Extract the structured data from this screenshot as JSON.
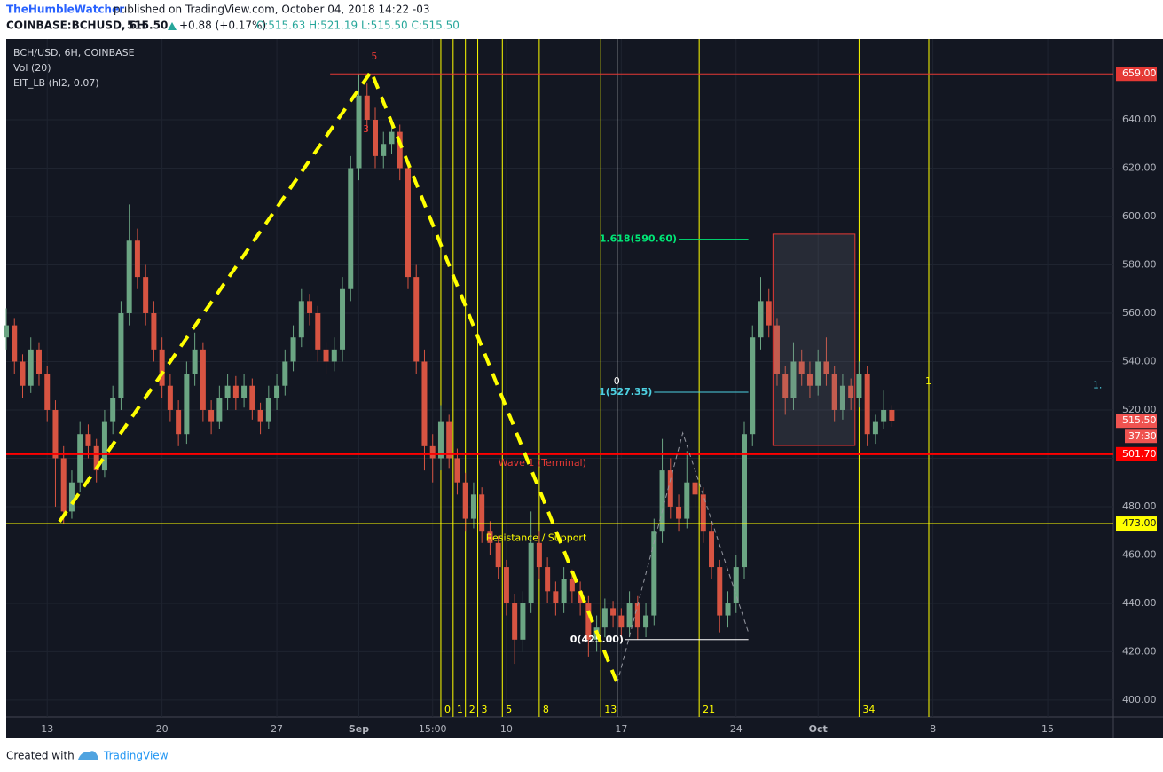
{
  "header": {
    "publisher": "TheHumbleWatcher",
    "published": "published on TradingView.com, October 04, 2018 14:22 -03",
    "symbol": "COINBASE:BCHUSD, 6H",
    "last": "515.50",
    "change": "+0.88 (+0.17%)",
    "ohlc": "O:515.63 H:521.19 L:515.50 C:515.50"
  },
  "legend": [
    "BCH/USD, 6H, COINBASE",
    "Vol (20)",
    "EIT_LB (hl2, 0.07)"
  ],
  "footer": {
    "created": "Created with",
    "brand": "TradingView"
  },
  "chart_data": {
    "type": "candlestick",
    "up_color": "#6ba583",
    "down_color": "#d75442",
    "xlim": [
      -10,
      260
    ],
    "ylim": [
      393,
      673.4
    ],
    "xticks": [
      {
        "value": 0,
        "label": "13"
      },
      {
        "value": 28,
        "label": "20"
      },
      {
        "value": 56,
        "label": "27"
      },
      {
        "value": 76,
        "label": "Sep"
      },
      {
        "value": 94,
        "label": "15:00"
      },
      {
        "value": 112,
        "label": "10"
      },
      {
        "value": 140,
        "label": "17"
      },
      {
        "value": 168,
        "label": "24"
      },
      {
        "value": 188,
        "label": "Oct"
      },
      {
        "value": 216,
        "label": "8"
      },
      {
        "value": 244,
        "label": "15"
      }
    ],
    "yticks": [
      {
        "value": 400,
        "label": "400.00"
      },
      {
        "value": 420,
        "label": "420.00"
      },
      {
        "value": 440,
        "label": "440.00"
      },
      {
        "value": 460,
        "label": "460.00"
      },
      {
        "value": 480,
        "label": "480.00"
      },
      {
        "value": 500,
        "label": "500.00"
      },
      {
        "value": 520,
        "label": "520.00"
      },
      {
        "value": 540,
        "label": "540.00"
      },
      {
        "value": 560,
        "label": "560.00"
      },
      {
        "value": 580,
        "label": "580.00"
      },
      {
        "value": 600,
        "label": "600.00"
      },
      {
        "value": 620,
        "label": "620.00"
      },
      {
        "value": 640,
        "label": "640.00"
      }
    ],
    "grid": true,
    "candles": [
      [
        -10,
        550,
        562,
        545,
        555
      ],
      [
        -8,
        555,
        558,
        535,
        540
      ],
      [
        -6,
        540,
        543,
        525,
        530
      ],
      [
        -4,
        530,
        550,
        527,
        545
      ],
      [
        -2,
        545,
        548,
        530,
        535
      ],
      [
        0,
        535,
        538,
        515,
        520
      ],
      [
        2,
        520,
        524,
        480,
        500
      ],
      [
        4,
        500,
        505,
        473,
        478
      ],
      [
        6,
        478,
        495,
        475,
        490
      ],
      [
        8,
        490,
        515,
        486,
        510
      ],
      [
        10,
        510,
        514,
        500,
        505
      ],
      [
        12,
        505,
        508,
        490,
        495
      ],
      [
        14,
        495,
        520,
        492,
        515
      ],
      [
        16,
        515,
        530,
        510,
        525
      ],
      [
        18,
        525,
        565,
        520,
        560
      ],
      [
        20,
        560,
        605,
        555,
        590
      ],
      [
        22,
        590,
        595,
        570,
        575
      ],
      [
        24,
        575,
        580,
        555,
        560
      ],
      [
        26,
        560,
        565,
        540,
        545
      ],
      [
        28,
        545,
        550,
        525,
        530
      ],
      [
        30,
        530,
        535,
        515,
        520
      ],
      [
        32,
        520,
        524,
        505,
        510
      ],
      [
        34,
        510,
        540,
        506,
        535
      ],
      [
        36,
        535,
        552,
        530,
        545
      ],
      [
        38,
        545,
        548,
        515,
        520
      ],
      [
        40,
        520,
        524,
        510,
        515
      ],
      [
        42,
        515,
        530,
        512,
        525
      ],
      [
        44,
        525,
        535,
        520,
        530
      ],
      [
        46,
        530,
        534,
        520,
        525
      ],
      [
        48,
        525,
        535,
        521,
        530
      ],
      [
        50,
        530,
        533,
        516,
        520
      ],
      [
        52,
        520,
        523,
        510,
        515
      ],
      [
        54,
        515,
        530,
        512,
        525
      ],
      [
        56,
        525,
        535,
        520,
        530
      ],
      [
        58,
        530,
        545,
        526,
        540
      ],
      [
        60,
        540,
        555,
        536,
        550
      ],
      [
        62,
        550,
        570,
        546,
        565
      ],
      [
        64,
        565,
        568,
        555,
        560
      ],
      [
        66,
        560,
        563,
        540,
        545
      ],
      [
        68,
        545,
        548,
        535,
        540
      ],
      [
        70,
        540,
        550,
        536,
        545
      ],
      [
        72,
        545,
        575,
        540,
        570
      ],
      [
        74,
        570,
        625,
        565,
        620
      ],
      [
        76,
        620,
        659,
        615,
        650
      ],
      [
        78,
        650,
        655,
        635,
        640
      ],
      [
        80,
        640,
        645,
        620,
        625
      ],
      [
        82,
        625,
        635,
        620,
        630
      ],
      [
        84,
        630,
        640,
        626,
        635
      ],
      [
        86,
        635,
        638,
        615,
        620
      ],
      [
        88,
        620,
        622,
        570,
        575
      ],
      [
        90,
        575,
        580,
        535,
        540
      ],
      [
        92,
        540,
        545,
        495,
        505
      ],
      [
        94,
        505,
        510,
        490,
        500
      ],
      [
        96,
        500,
        522,
        495,
        515
      ],
      [
        98,
        515,
        518,
        496,
        500
      ],
      [
        100,
        500,
        504,
        485,
        490
      ],
      [
        102,
        490,
        494,
        470,
        475
      ],
      [
        104,
        475,
        490,
        471,
        485
      ],
      [
        106,
        485,
        488,
        465,
        470
      ],
      [
        108,
        470,
        474,
        460,
        465
      ],
      [
        110,
        465,
        468,
        450,
        455
      ],
      [
        112,
        455,
        458,
        435,
        440
      ],
      [
        114,
        440,
        444,
        415,
        425
      ],
      [
        116,
        425,
        445,
        420,
        440
      ],
      [
        118,
        440,
        478,
        436,
        465
      ],
      [
        120,
        465,
        470,
        450,
        455
      ],
      [
        122,
        455,
        459,
        440,
        445
      ],
      [
        124,
        445,
        449,
        435,
        440
      ],
      [
        126,
        440,
        455,
        436,
        450
      ],
      [
        128,
        450,
        454,
        440,
        445
      ],
      [
        130,
        445,
        449,
        435,
        440
      ],
      [
        132,
        440,
        443,
        418,
        425
      ],
      [
        134,
        425,
        435,
        420,
        430
      ],
      [
        136,
        430,
        442,
        426,
        438
      ],
      [
        138,
        438,
        441,
        430,
        435
      ],
      [
        140,
        435,
        438,
        425,
        430
      ],
      [
        142,
        430,
        445,
        426,
        440
      ],
      [
        144,
        440,
        443,
        425,
        430
      ],
      [
        146,
        430,
        440,
        426,
        435
      ],
      [
        148,
        435,
        475,
        431,
        470
      ],
      [
        150,
        470,
        508,
        465,
        495
      ],
      [
        152,
        495,
        500,
        475,
        480
      ],
      [
        154,
        480,
        485,
        470,
        475
      ],
      [
        156,
        475,
        503,
        471,
        490
      ],
      [
        158,
        490,
        495,
        480,
        485
      ],
      [
        160,
        485,
        488,
        465,
        470
      ],
      [
        162,
        470,
        474,
        450,
        455
      ],
      [
        164,
        455,
        458,
        428,
        435
      ],
      [
        166,
        435,
        445,
        430,
        440
      ],
      [
        168,
        440,
        460,
        436,
        455
      ],
      [
        170,
        455,
        515,
        450,
        510
      ],
      [
        172,
        510,
        555,
        505,
        550
      ],
      [
        174,
        550,
        575,
        545,
        565
      ],
      [
        176,
        565,
        570,
        550,
        555
      ],
      [
        178,
        555,
        558,
        530,
        535
      ],
      [
        180,
        535,
        538,
        518,
        525
      ],
      [
        182,
        525,
        548,
        520,
        540
      ],
      [
        184,
        540,
        545,
        530,
        535
      ],
      [
        186,
        535,
        540,
        525,
        530
      ],
      [
        188,
        530,
        545,
        526,
        540
      ],
      [
        190,
        540,
        550,
        530,
        535
      ],
      [
        192,
        535,
        538,
        515,
        520
      ],
      [
        194,
        520,
        535,
        516,
        530
      ],
      [
        196,
        530,
        533,
        520,
        525
      ],
      [
        198,
        525,
        540,
        521,
        535
      ],
      [
        200,
        535,
        538,
        505,
        510
      ],
      [
        202,
        510,
        518,
        506,
        515
      ],
      [
        204,
        515,
        528,
        512,
        520
      ],
      [
        206,
        520,
        522,
        513,
        515.5
      ]
    ],
    "hlines": [
      {
        "value": 659,
        "label": "659.00",
        "color": "#e53935",
        "x0": 69
      },
      {
        "value": 501.7,
        "label": "501.70",
        "color": "#ff0000",
        "x0": -10
      },
      {
        "value": 473,
        "label": "473.00",
        "color": "#ffff00",
        "x0": -10
      }
    ],
    "last_price": {
      "value": 515.5,
      "label": "515.50",
      "countdown": "37:30"
    },
    "fib_levels": [
      {
        "value": 590.6,
        "label": "1.618(590.60)",
        "color": "#00e676",
        "x0": 154,
        "x1": 171
      },
      {
        "value": 527.35,
        "label": "1(527.35)",
        "color": "#4dd0e1",
        "x0": 148,
        "x1": 171
      },
      {
        "value": 425,
        "label": "0(425.00)",
        "color": "#ffffff",
        "x0": 141,
        "x1": 171
      }
    ],
    "fib_time": {
      "x": [
        96,
        99,
        102,
        105,
        111,
        120,
        135,
        159,
        198
      ],
      "labels": [
        0,
        1,
        2,
        3,
        5,
        8,
        13,
        21,
        34
      ],
      "color": "#ffff00"
    },
    "extra_vlines": [
      {
        "x": 139,
        "color": "#ffffff",
        "label": "0"
      },
      {
        "x": 215,
        "color": "#ffff00",
        "label": "1"
      }
    ],
    "wave": {
      "x": [
        3,
        79,
        139
      ],
      "y": [
        473.8,
        660,
        407
      ],
      "color": "#ffff00"
    },
    "zigzag": {
      "x": [
        139,
        155,
        171
      ],
      "y": [
        407,
        510.5,
        428
      ]
    },
    "box": {
      "x": [
        177,
        197
      ],
      "y": [
        592.7,
        505.3
      ]
    },
    "annotations": [
      {
        "text": "5",
        "x": 79,
        "y": 666,
        "color": "#e53935"
      },
      {
        "text": "3",
        "x": 77,
        "y": 636,
        "color": "#e53935"
      },
      {
        "text": "Wave 1 (Terminal)",
        "x": 110,
        "y": 498,
        "color": "#e53935"
      },
      {
        "text": "Resistance / Support",
        "x": 107,
        "y": 467,
        "color": "#ffff00"
      },
      {
        "text": "1.",
        "x": 255,
        "y": 530,
        "color": "#4dd0e1"
      }
    ]
  }
}
